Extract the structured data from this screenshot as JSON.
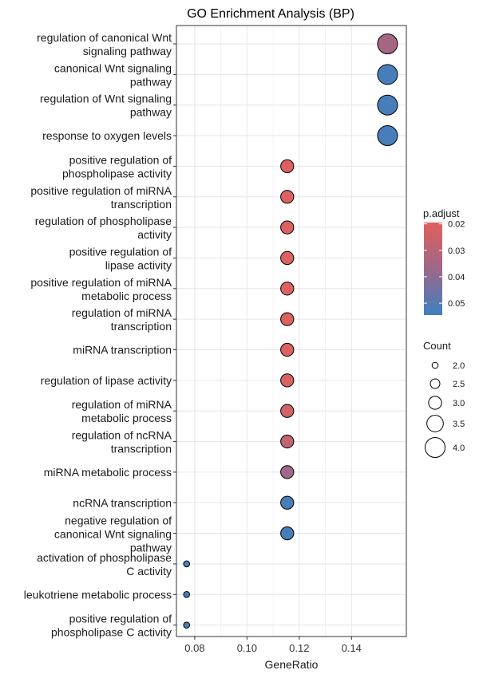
{
  "chart_data": {
    "type": "scatter",
    "title": "GO Enrichment Analysis (BP)",
    "xlabel": "GeneRatio",
    "ylabel": "",
    "xlim": [
      0.073,
      0.161
    ],
    "x_ticks": [
      "0.08",
      "0.10",
      "0.12",
      "0.14"
    ],
    "x_tick_values": [
      0.08,
      0.1,
      0.12,
      0.14
    ],
    "grid": true,
    "legend_position": "right",
    "categories": [
      [
        "regulation of canonical Wnt",
        "signaling pathway"
      ],
      [
        "canonical Wnt signaling",
        "pathway"
      ],
      [
        "regulation of Wnt signaling",
        "pathway"
      ],
      [
        "response to oxygen levels"
      ],
      [
        "positive regulation of",
        "phospholipase activity"
      ],
      [
        "positive regulation of miRNA",
        "transcription"
      ],
      [
        "regulation of phospholipase",
        "activity"
      ],
      [
        "positive regulation of",
        "lipase activity"
      ],
      [
        "positive regulation of miRNA",
        "metabolic process"
      ],
      [
        "regulation of miRNA",
        "transcription"
      ],
      [
        "miRNA transcription"
      ],
      [
        "regulation of lipase activity"
      ],
      [
        "regulation of miRNA",
        "metabolic process"
      ],
      [
        "regulation of ncRNA",
        "transcription"
      ],
      [
        "miRNA metabolic process"
      ],
      [
        "ncRNA transcription"
      ],
      [
        "negative regulation of",
        "canonical Wnt signaling",
        "pathway"
      ],
      [
        "activation of phospholipase",
        "C activity"
      ],
      [
        "leukotriene metabolic process"
      ],
      [
        "positive regulation of",
        "phospholipase C activity"
      ]
    ],
    "points": [
      {
        "gene_ratio": 0.1538,
        "count": 4,
        "p_adjust": 0.035
      },
      {
        "gene_ratio": 0.1538,
        "count": 4,
        "p_adjust": 0.053
      },
      {
        "gene_ratio": 0.1538,
        "count": 4,
        "p_adjust": 0.053
      },
      {
        "gene_ratio": 0.1538,
        "count": 4,
        "p_adjust": 0.053
      },
      {
        "gene_ratio": 0.1154,
        "count": 3,
        "p_adjust": 0.021
      },
      {
        "gene_ratio": 0.1154,
        "count": 3,
        "p_adjust": 0.021
      },
      {
        "gene_ratio": 0.1154,
        "count": 3,
        "p_adjust": 0.021
      },
      {
        "gene_ratio": 0.1154,
        "count": 3,
        "p_adjust": 0.021
      },
      {
        "gene_ratio": 0.1154,
        "count": 3,
        "p_adjust": 0.021
      },
      {
        "gene_ratio": 0.1154,
        "count": 3,
        "p_adjust": 0.021
      },
      {
        "gene_ratio": 0.1154,
        "count": 3,
        "p_adjust": 0.021
      },
      {
        "gene_ratio": 0.1154,
        "count": 3,
        "p_adjust": 0.022
      },
      {
        "gene_ratio": 0.1154,
        "count": 3,
        "p_adjust": 0.024
      },
      {
        "gene_ratio": 0.1154,
        "count": 3,
        "p_adjust": 0.028
      },
      {
        "gene_ratio": 0.1154,
        "count": 3,
        "p_adjust": 0.036
      },
      {
        "gene_ratio": 0.1154,
        "count": 3,
        "p_adjust": 0.053
      },
      {
        "gene_ratio": 0.1154,
        "count": 3,
        "p_adjust": 0.053
      },
      {
        "gene_ratio": 0.0769,
        "count": 2,
        "p_adjust": 0.053
      },
      {
        "gene_ratio": 0.0769,
        "count": 2,
        "p_adjust": 0.053
      },
      {
        "gene_ratio": 0.0769,
        "count": 2,
        "p_adjust": 0.053
      }
    ],
    "color_legend": {
      "title": "p.adjust",
      "ticks": [
        "0.02",
        "0.03",
        "0.04",
        "0.05"
      ],
      "tick_values": [
        0.02,
        0.03,
        0.04,
        0.05
      ],
      "range": [
        0.0195,
        0.0545
      ],
      "low_color": "#E2605C",
      "mid_color": "#9D6789",
      "high_color": "#3F80BF"
    },
    "size_legend": {
      "title": "Count",
      "labels": [
        "2.0",
        "2.5",
        "3.0",
        "3.5",
        "4.0"
      ],
      "values": [
        2.0,
        2.5,
        3.0,
        3.5,
        4.0
      ]
    }
  }
}
